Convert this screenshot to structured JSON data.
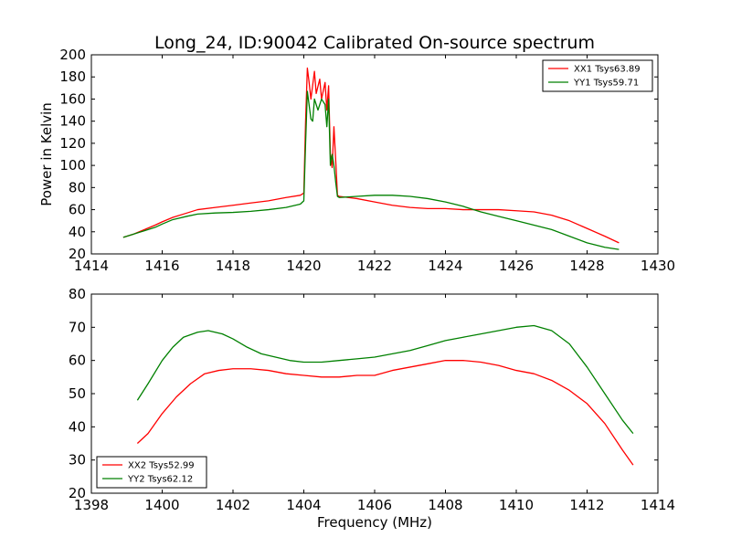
{
  "chart_data": [
    {
      "type": "line",
      "title": "Long_24, ID:90042 Calibrated On-source spectrum",
      "xlabel": "",
      "ylabel": "Power in Kelvin",
      "xlim": [
        1414,
        1430
      ],
      "ylim": [
        20,
        200
      ],
      "xticks": [
        1414,
        1416,
        1418,
        1420,
        1422,
        1424,
        1426,
        1428,
        1430
      ],
      "yticks": [
        20,
        40,
        60,
        80,
        100,
        120,
        140,
        160,
        180,
        200
      ],
      "legend_position": "top-right",
      "series": [
        {
          "name": "XX1 Tsys63.89",
          "color": "#ff0000",
          "points": [
            [
              1414.9,
              35
            ],
            [
              1415.2,
              38
            ],
            [
              1415.5,
              42
            ],
            [
              1415.8,
              46
            ],
            [
              1416.0,
              49
            ],
            [
              1416.3,
              53
            ],
            [
              1416.7,
              57
            ],
            [
              1417.0,
              60
            ],
            [
              1417.5,
              62
            ],
            [
              1418.0,
              64
            ],
            [
              1418.5,
              66
            ],
            [
              1419.0,
              68
            ],
            [
              1419.5,
              71
            ],
            [
              1419.9,
              73
            ],
            [
              1420.0,
              75
            ],
            [
              1420.05,
              140
            ],
            [
              1420.1,
              188
            ],
            [
              1420.15,
              175
            ],
            [
              1420.2,
              160
            ],
            [
              1420.3,
              185
            ],
            [
              1420.35,
              165
            ],
            [
              1420.45,
              178
            ],
            [
              1420.5,
              160
            ],
            [
              1420.6,
              175
            ],
            [
              1420.65,
              150
            ],
            [
              1420.7,
              172
            ],
            [
              1420.75,
              110
            ],
            [
              1420.8,
              98
            ],
            [
              1420.85,
              135
            ],
            [
              1420.9,
              105
            ],
            [
              1420.95,
              73
            ],
            [
              1421.0,
              72
            ],
            [
              1421.5,
              70
            ],
            [
              1422.0,
              67
            ],
            [
              1422.5,
              64
            ],
            [
              1423.0,
              62
            ],
            [
              1423.5,
              61
            ],
            [
              1424.0,
              61
            ],
            [
              1424.5,
              60
            ],
            [
              1425.0,
              60
            ],
            [
              1425.5,
              60
            ],
            [
              1426.0,
              59
            ],
            [
              1426.5,
              58
            ],
            [
              1427.0,
              55
            ],
            [
              1427.5,
              50
            ],
            [
              1428.0,
              43
            ],
            [
              1428.5,
              36
            ],
            [
              1428.9,
              30
            ]
          ]
        },
        {
          "name": "YY1 Tsys59.71",
          "color": "#008000",
          "points": [
            [
              1414.9,
              35
            ],
            [
              1415.2,
              38
            ],
            [
              1415.5,
              41
            ],
            [
              1415.8,
              44
            ],
            [
              1416.0,
              47
            ],
            [
              1416.3,
              51
            ],
            [
              1416.7,
              54
            ],
            [
              1417.0,
              56
            ],
            [
              1417.5,
              57
            ],
            [
              1418.0,
              57.5
            ],
            [
              1418.5,
              58.5
            ],
            [
              1419.0,
              60
            ],
            [
              1419.5,
              62
            ],
            [
              1419.9,
              65
            ],
            [
              1420.0,
              68
            ],
            [
              1420.05,
              120
            ],
            [
              1420.1,
              167
            ],
            [
              1420.2,
              142
            ],
            [
              1420.25,
              140
            ],
            [
              1420.3,
              160
            ],
            [
              1420.4,
              150
            ],
            [
              1420.5,
              160
            ],
            [
              1420.6,
              155
            ],
            [
              1420.65,
              135
            ],
            [
              1420.7,
              160
            ],
            [
              1420.75,
              100
            ],
            [
              1420.8,
              110
            ],
            [
              1420.85,
              100
            ],
            [
              1420.9,
              85
            ],
            [
              1420.95,
              72
            ],
            [
              1421.0,
              71
            ],
            [
              1421.5,
              72
            ],
            [
              1422.0,
              73
            ],
            [
              1422.5,
              73
            ],
            [
              1423.0,
              72
            ],
            [
              1423.5,
              70
            ],
            [
              1424.0,
              67
            ],
            [
              1424.5,
              63
            ],
            [
              1425.0,
              58
            ],
            [
              1425.5,
              54
            ],
            [
              1426.0,
              50
            ],
            [
              1426.5,
              46
            ],
            [
              1427.0,
              42
            ],
            [
              1427.5,
              36
            ],
            [
              1428.0,
              30
            ],
            [
              1428.5,
              26
            ],
            [
              1428.9,
              24
            ]
          ]
        }
      ]
    },
    {
      "type": "line",
      "title": "",
      "xlabel": "Frequency (MHz)",
      "ylabel": "",
      "xlim": [
        1398,
        1414
      ],
      "ylim": [
        20,
        80
      ],
      "xticks": [
        1398,
        1400,
        1402,
        1404,
        1406,
        1408,
        1410,
        1412,
        1414
      ],
      "yticks": [
        20,
        30,
        40,
        50,
        60,
        70,
        80
      ],
      "legend_position": "bottom-left",
      "series": [
        {
          "name": "XX2 Tsys52.99",
          "color": "#ff0000",
          "points": [
            [
              1399.3,
              35
            ],
            [
              1399.6,
              38
            ],
            [
              1400.0,
              44
            ],
            [
              1400.4,
              49
            ],
            [
              1400.8,
              53
            ],
            [
              1401.2,
              56
            ],
            [
              1401.6,
              57
            ],
            [
              1402.0,
              57.5
            ],
            [
              1402.5,
              57.5
            ],
            [
              1403.0,
              57
            ],
            [
              1403.5,
              56
            ],
            [
              1404.0,
              55.5
            ],
            [
              1404.5,
              55
            ],
            [
              1405.0,
              55
            ],
            [
              1405.5,
              55.5
            ],
            [
              1406.0,
              55.5
            ],
            [
              1406.5,
              57
            ],
            [
              1407.0,
              58
            ],
            [
              1407.5,
              59
            ],
            [
              1408.0,
              60
            ],
            [
              1408.5,
              60
            ],
            [
              1409.0,
              59.5
            ],
            [
              1409.5,
              58.5
            ],
            [
              1410.0,
              57
            ],
            [
              1410.5,
              56
            ],
            [
              1411.0,
              54
            ],
            [
              1411.5,
              51
            ],
            [
              1412.0,
              47
            ],
            [
              1412.5,
              41
            ],
            [
              1413.0,
              33
            ],
            [
              1413.3,
              28.5
            ]
          ]
        },
        {
          "name": "YY2 Tsys62.12",
          "color": "#008000",
          "points": [
            [
              1399.3,
              48
            ],
            [
              1399.6,
              53
            ],
            [
              1400.0,
              60
            ],
            [
              1400.3,
              64
            ],
            [
              1400.6,
              67
            ],
            [
              1401.0,
              68.5
            ],
            [
              1401.3,
              69
            ],
            [
              1401.7,
              68
            ],
            [
              1402.0,
              66.5
            ],
            [
              1402.4,
              64
            ],
            [
              1402.8,
              62
            ],
            [
              1403.2,
              61
            ],
            [
              1403.6,
              60
            ],
            [
              1404.0,
              59.5
            ],
            [
              1404.5,
              59.5
            ],
            [
              1405.0,
              60
            ],
            [
              1405.5,
              60.5
            ],
            [
              1406.0,
              61
            ],
            [
              1406.5,
              62
            ],
            [
              1407.0,
              63
            ],
            [
              1407.5,
              64.5
            ],
            [
              1408.0,
              66
            ],
            [
              1408.5,
              67
            ],
            [
              1409.0,
              68
            ],
            [
              1409.5,
              69
            ],
            [
              1410.0,
              70
            ],
            [
              1410.5,
              70.5
            ],
            [
              1411.0,
              69
            ],
            [
              1411.5,
              65
            ],
            [
              1412.0,
              58
            ],
            [
              1412.5,
              50
            ],
            [
              1413.0,
              42
            ],
            [
              1413.3,
              38
            ]
          ]
        }
      ]
    }
  ]
}
